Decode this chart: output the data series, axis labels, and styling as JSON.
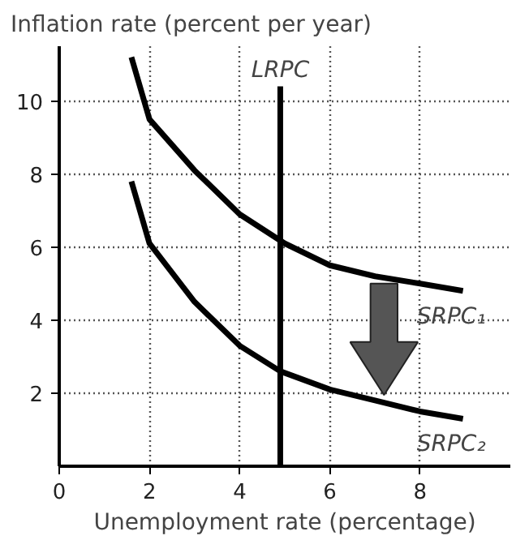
{
  "chart_data": {
    "type": "line",
    "xlabel": "Unemployment rate (percentage)",
    "ylabel": "Inflation rate (percent per year)",
    "xlim": [
      0,
      10
    ],
    "ylim": [
      0,
      11.5
    ],
    "xticks": [
      0,
      2,
      4,
      6,
      8
    ],
    "yticks": [
      2,
      4,
      6,
      8,
      10
    ],
    "grid": true,
    "marker": "none",
    "line_style": "solid",
    "series": [
      {
        "name": "LRPC",
        "color": "#000000",
        "x": [
          4.9,
          4.9
        ],
        "values": [
          0,
          10.4
        ]
      },
      {
        "name": "SRPC₁",
        "color": "#000000",
        "x": [
          1.6,
          2,
          3,
          4,
          5,
          6,
          7,
          8,
          8.95
        ],
        "values": [
          11.2,
          9.5,
          8.1,
          6.9,
          6.1,
          5.5,
          5.2,
          5.0,
          4.8
        ]
      },
      {
        "name": "SRPC₂",
        "color": "#000000",
        "x": [
          1.6,
          2,
          3,
          4,
          4.9,
          6,
          7,
          8,
          8.95
        ],
        "values": [
          7.8,
          6.1,
          4.5,
          3.3,
          2.6,
          2.1,
          1.8,
          1.5,
          1.3
        ]
      }
    ]
  }
}
